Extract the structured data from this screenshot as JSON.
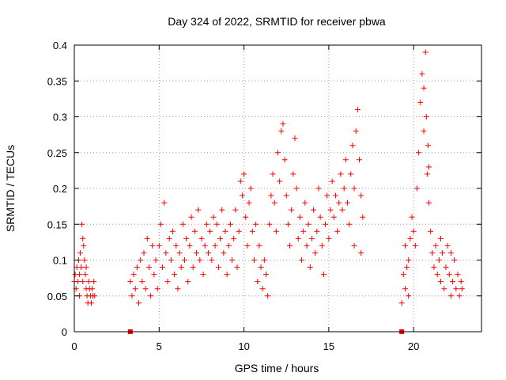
{
  "chart_data": {
    "type": "scatter",
    "title": "Day 324 of 2022, SRMTID for receiver pbwa",
    "xlabel": "GPS time / hours",
    "ylabel": "SRMTID / TECUs",
    "xlim": [
      0,
      24
    ],
    "ylim": [
      0,
      0.4
    ],
    "x_ticks": [
      0,
      5,
      10,
      15,
      20
    ],
    "x_tick_labels": [
      "0",
      "5",
      "10",
      "15",
      "20"
    ],
    "y_ticks": [
      0,
      0.05,
      0.1,
      0.15,
      0.2,
      0.25,
      0.3,
      0.35,
      0.4
    ],
    "y_tick_labels": [
      "0",
      "0.05",
      "0.1",
      "0.15",
      "0.2",
      "0.25",
      "0.3",
      "0.35",
      "0.4"
    ],
    "grid": true,
    "marker": "plus",
    "color": "#ff0000",
    "series": [
      {
        "name": "SRMTID",
        "points": [
          [
            0.0,
            0.07
          ],
          [
            0.05,
            0.08
          ],
          [
            0.1,
            0.06
          ],
          [
            0.15,
            0.09
          ],
          [
            0.2,
            0.07
          ],
          [
            0.25,
            0.1
          ],
          [
            0.3,
            0.08
          ],
          [
            0.35,
            0.11
          ],
          [
            0.4,
            0.09
          ],
          [
            0.45,
            0.15
          ],
          [
            0.5,
            0.13
          ],
          [
            0.55,
            0.12
          ],
          [
            0.6,
            0.1
          ],
          [
            0.65,
            0.08
          ],
          [
            0.7,
            0.06
          ],
          [
            0.75,
            0.05
          ],
          [
            0.8,
            0.04
          ],
          [
            0.85,
            0.07
          ],
          [
            0.9,
            0.06
          ],
          [
            0.95,
            0.05
          ],
          [
            1.0,
            0.04
          ],
          [
            1.05,
            0.06
          ],
          [
            1.1,
            0.05
          ],
          [
            1.15,
            0.07
          ],
          [
            1.2,
            0.05
          ],
          [
            0.3,
            0.05
          ],
          [
            0.5,
            0.07
          ],
          [
            0.7,
            0.09
          ],
          [
            3.3,
            0.07
          ],
          [
            3.4,
            0.05
          ],
          [
            3.5,
            0.08
          ],
          [
            3.6,
            0.06
          ],
          [
            3.7,
            0.09
          ],
          [
            3.8,
            0.04
          ],
          [
            3.9,
            0.1
          ],
          [
            4.0,
            0.07
          ],
          [
            4.1,
            0.11
          ],
          [
            4.2,
            0.06
          ],
          [
            4.3,
            0.13
          ],
          [
            4.4,
            0.09
          ],
          [
            4.5,
            0.05
          ],
          [
            4.6,
            0.12
          ],
          [
            4.7,
            0.08
          ],
          [
            4.8,
            0.1
          ],
          [
            4.9,
            0.06
          ],
          [
            5.0,
            0.12
          ],
          [
            5.1,
            0.15
          ],
          [
            5.2,
            0.09
          ],
          [
            5.3,
            0.18
          ],
          [
            5.4,
            0.11
          ],
          [
            5.5,
            0.07
          ],
          [
            5.6,
            0.13
          ],
          [
            5.7,
            0.1
          ],
          [
            5.8,
            0.14
          ],
          [
            5.9,
            0.08
          ],
          [
            6.0,
            0.12
          ],
          [
            6.1,
            0.06
          ],
          [
            6.2,
            0.11
          ],
          [
            6.3,
            0.09
          ],
          [
            6.4,
            0.15
          ],
          [
            6.5,
            0.1
          ],
          [
            6.6,
            0.13
          ],
          [
            6.7,
            0.07
          ],
          [
            6.8,
            0.12
          ],
          [
            6.9,
            0.16
          ],
          [
            7.0,
            0.09
          ],
          [
            7.1,
            0.14
          ],
          [
            7.2,
            0.11
          ],
          [
            7.3,
            0.17
          ],
          [
            7.4,
            0.1
          ],
          [
            7.5,
            0.13
          ],
          [
            7.6,
            0.08
          ],
          [
            7.7,
            0.12
          ],
          [
            7.8,
            0.15
          ],
          [
            7.9,
            0.11
          ],
          [
            8.0,
            0.14
          ],
          [
            8.1,
            0.1
          ],
          [
            8.2,
            0.16
          ],
          [
            8.3,
            0.12
          ],
          [
            8.4,
            0.15
          ],
          [
            8.5,
            0.09
          ],
          [
            8.6,
            0.13
          ],
          [
            8.7,
            0.17
          ],
          [
            8.8,
            0.11
          ],
          [
            8.9,
            0.14
          ],
          [
            9.0,
            0.08
          ],
          [
            9.1,
            0.12
          ],
          [
            9.2,
            0.15
          ],
          [
            9.3,
            0.1
          ],
          [
            9.4,
            0.13
          ],
          [
            9.5,
            0.17
          ],
          [
            9.6,
            0.09
          ],
          [
            9.7,
            0.14
          ],
          [
            9.8,
            0.21
          ],
          [
            9.9,
            0.19
          ],
          [
            10.0,
            0.22
          ],
          [
            10.1,
            0.16
          ],
          [
            10.2,
            0.12
          ],
          [
            10.3,
            0.18
          ],
          [
            10.4,
            0.2
          ],
          [
            10.5,
            0.14
          ],
          [
            10.6,
            0.1
          ],
          [
            10.7,
            0.15
          ],
          [
            10.8,
            0.07
          ],
          [
            10.9,
            0.12
          ],
          [
            11.0,
            0.09
          ],
          [
            11.1,
            0.06
          ],
          [
            11.2,
            0.1
          ],
          [
            11.3,
            0.08
          ],
          [
            11.4,
            0.05
          ],
          [
            11.5,
            0.15
          ],
          [
            11.6,
            0.19
          ],
          [
            11.7,
            0.22
          ],
          [
            11.8,
            0.18
          ],
          [
            11.9,
            0.14
          ],
          [
            12.0,
            0.25
          ],
          [
            12.1,
            0.21
          ],
          [
            12.2,
            0.28
          ],
          [
            12.3,
            0.29
          ],
          [
            12.4,
            0.24
          ],
          [
            12.5,
            0.19
          ],
          [
            12.6,
            0.15
          ],
          [
            12.7,
            0.12
          ],
          [
            12.8,
            0.17
          ],
          [
            12.9,
            0.22
          ],
          [
            13.0,
            0.27
          ],
          [
            13.1,
            0.2
          ],
          [
            13.2,
            0.13
          ],
          [
            13.3,
            0.16
          ],
          [
            13.4,
            0.1
          ],
          [
            13.5,
            0.14
          ],
          [
            13.6,
            0.18
          ],
          [
            13.7,
            0.12
          ],
          [
            13.8,
            0.15
          ],
          [
            13.9,
            0.09
          ],
          [
            14.0,
            0.13
          ],
          [
            14.1,
            0.17
          ],
          [
            14.2,
            0.11
          ],
          [
            14.3,
            0.14
          ],
          [
            14.4,
            0.2
          ],
          [
            14.5,
            0.16
          ],
          [
            14.6,
            0.12
          ],
          [
            14.7,
            0.08
          ],
          [
            14.8,
            0.15
          ],
          [
            14.9,
            0.19
          ],
          [
            15.0,
            0.13
          ],
          [
            15.1,
            0.17
          ],
          [
            15.2,
            0.21
          ],
          [
            15.3,
            0.16
          ],
          [
            15.4,
            0.19
          ],
          [
            15.5,
            0.14
          ],
          [
            15.6,
            0.18
          ],
          [
            15.7,
            0.22
          ],
          [
            15.8,
            0.17
          ],
          [
            15.9,
            0.2
          ],
          [
            16.0,
            0.24
          ],
          [
            16.1,
            0.18
          ],
          [
            16.2,
            0.15
          ],
          [
            16.3,
            0.22
          ],
          [
            16.4,
            0.26
          ],
          [
            16.5,
            0.2
          ],
          [
            16.6,
            0.28
          ],
          [
            16.7,
            0.31
          ],
          [
            16.8,
            0.24
          ],
          [
            16.9,
            0.19
          ],
          [
            17.0,
            0.16
          ],
          [
            16.5,
            0.12
          ],
          [
            16.9,
            0.11
          ],
          [
            19.3,
            0.04
          ],
          [
            19.4,
            0.08
          ],
          [
            19.5,
            0.12
          ],
          [
            19.6,
            0.09
          ],
          [
            19.7,
            0.1
          ],
          [
            19.8,
            0.13
          ],
          [
            19.9,
            0.16
          ],
          [
            20.0,
            0.14
          ],
          [
            20.1,
            0.12
          ],
          [
            20.2,
            0.2
          ],
          [
            20.3,
            0.25
          ],
          [
            20.4,
            0.32
          ],
          [
            20.5,
            0.36
          ],
          [
            20.6,
            0.34
          ],
          [
            20.7,
            0.39
          ],
          [
            20.75,
            0.3
          ],
          [
            20.8,
            0.22
          ],
          [
            20.85,
            0.26
          ],
          [
            20.9,
            0.18
          ],
          [
            21.0,
            0.14
          ],
          [
            21.1,
            0.11
          ],
          [
            21.2,
            0.09
          ],
          [
            21.3,
            0.12
          ],
          [
            21.4,
            0.08
          ],
          [
            21.5,
            0.1
          ],
          [
            21.6,
            0.07
          ],
          [
            21.7,
            0.11
          ],
          [
            21.8,
            0.06
          ],
          [
            21.9,
            0.09
          ],
          [
            22.0,
            0.12
          ],
          [
            22.1,
            0.08
          ],
          [
            22.2,
            0.05
          ],
          [
            22.3,
            0.07
          ],
          [
            22.4,
            0.1
          ],
          [
            22.5,
            0.06
          ],
          [
            22.6,
            0.08
          ],
          [
            22.7,
            0.05
          ],
          [
            22.8,
            0.07
          ],
          [
            22.85,
            0.06
          ],
          [
            19.5,
            0.06
          ],
          [
            19.7,
            0.05
          ],
          [
            20.6,
            0.28
          ],
          [
            20.9,
            0.23
          ],
          [
            21.6,
            0.13
          ],
          [
            22.2,
            0.11
          ]
        ]
      }
    ],
    "gap_markers_x": [
      3.3,
      19.3
    ]
  }
}
